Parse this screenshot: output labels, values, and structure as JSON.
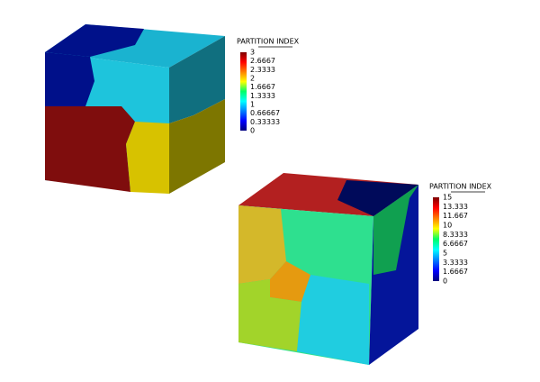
{
  "panels": [
    {
      "title": "PARTITION INDEX",
      "ticks": [
        "3",
        "2.6667",
        "2.3333",
        "2",
        "1.6667",
        "1.3333",
        "1",
        "0.66667",
        "0.33333",
        "0"
      ]
    },
    {
      "title": "PARTITION INDEX",
      "ticks": [
        "15",
        "13.333",
        "11.667",
        "10",
        "8.3333",
        "6.6667",
        "5",
        "3.3333",
        "1.6667",
        "0"
      ]
    }
  ]
}
